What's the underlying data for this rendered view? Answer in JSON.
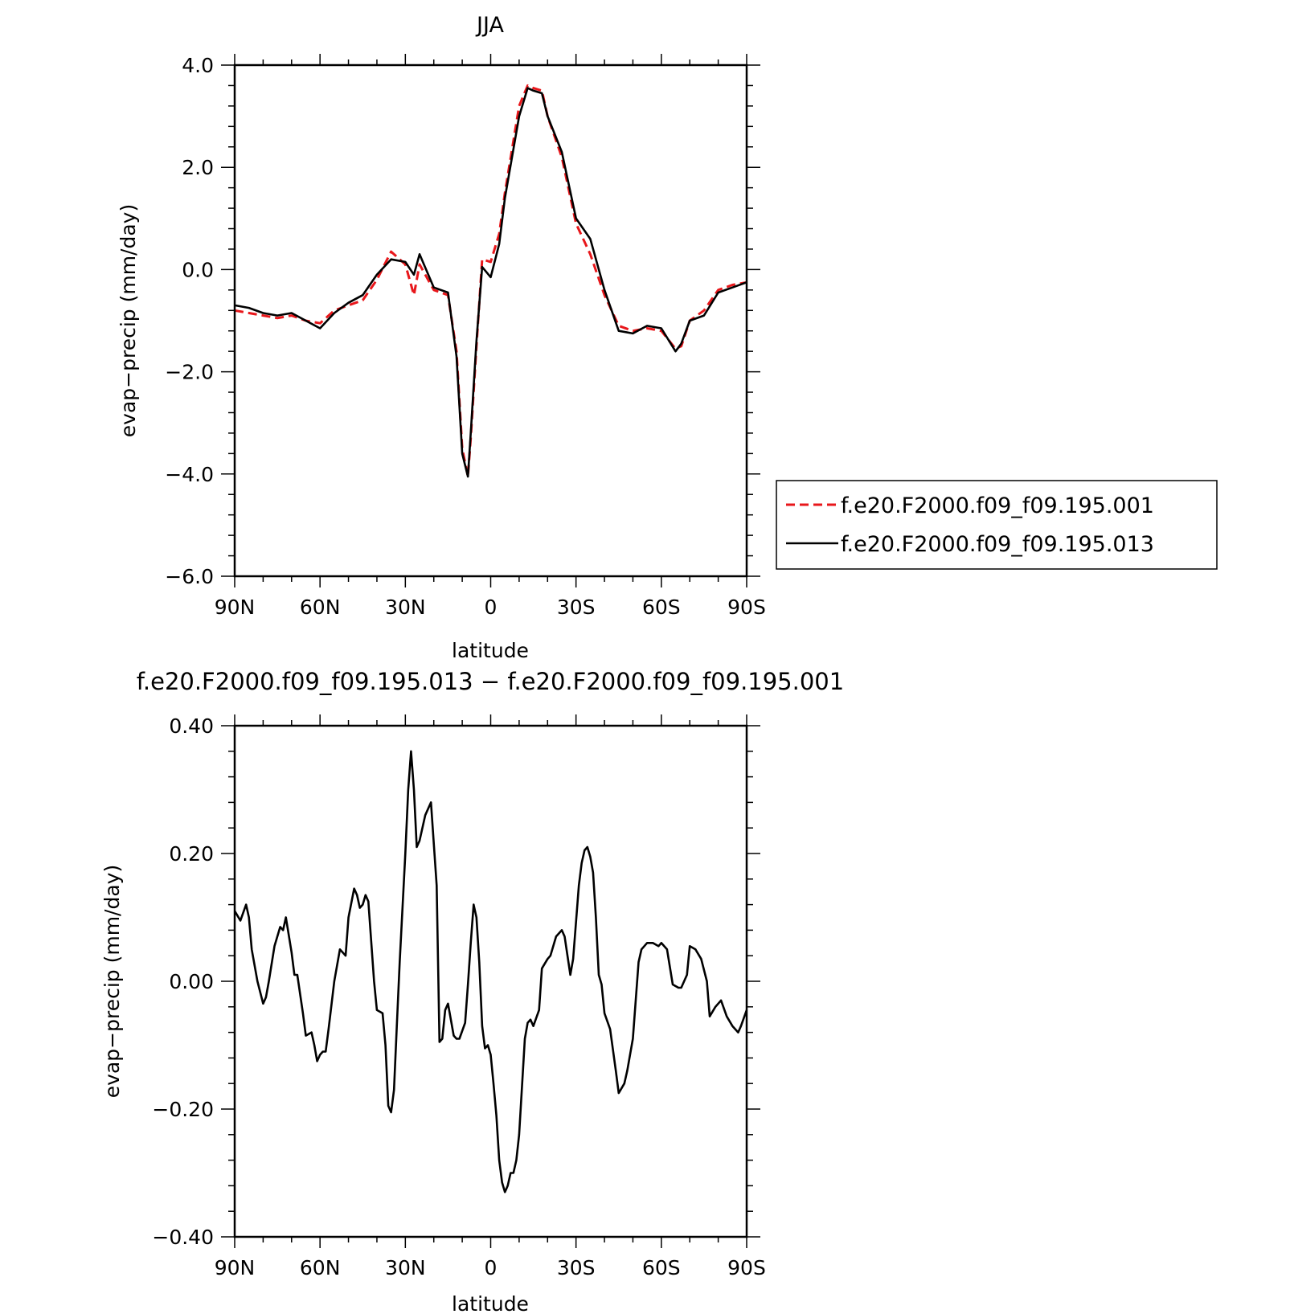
{
  "chart_data": [
    {
      "type": "line",
      "title": "JJA",
      "xlabel": "latitude",
      "ylabel": "evap−precip (mm/day)",
      "xlim": [
        90,
        -90
      ],
      "ylim": [
        -6.0,
        4.0
      ],
      "xticks": [
        {
          "value": 90,
          "label": "90N"
        },
        {
          "value": 60,
          "label": "60N"
        },
        {
          "value": 30,
          "label": "30N"
        },
        {
          "value": 0,
          "label": "0"
        },
        {
          "value": -30,
          "label": "30S"
        },
        {
          "value": -60,
          "label": "60S"
        },
        {
          "value": -90,
          "label": "90S"
        }
      ],
      "yticks": [
        {
          "value": 4.0,
          "label": "4.0"
        },
        {
          "value": 2.0,
          "label": "2.0"
        },
        {
          "value": 0.0,
          "label": "0.0"
        },
        {
          "value": -2.0,
          "label": "−2.0"
        },
        {
          "value": -4.0,
          "label": "−4.0"
        },
        {
          "value": -6.0,
          "label": "−6.0"
        }
      ],
      "legend_position": "right",
      "x": [
        90,
        85,
        80,
        75,
        70,
        65,
        60,
        55,
        50,
        45,
        40,
        35,
        30,
        27,
        25,
        20,
        15,
        12,
        10,
        8,
        7,
        5,
        3,
        0,
        -3,
        -5,
        -10,
        -13,
        -15,
        -18,
        -20,
        -25,
        -30,
        -35,
        -40,
        -45,
        -50,
        -55,
        -60,
        -65,
        -67,
        -70,
        -75,
        -80,
        -85,
        -90
      ],
      "series": [
        {
          "name": "f.e20.F2000.f09_f09.195.001",
          "color": "#e8171b",
          "dash": "dashed",
          "values": [
            -0.8,
            -0.85,
            -0.9,
            -0.95,
            -0.9,
            -1.0,
            -1.05,
            -0.8,
            -0.7,
            -0.6,
            -0.2,
            0.35,
            0.1,
            -0.5,
            0.1,
            -0.4,
            -0.5,
            -1.6,
            -3.5,
            -4.05,
            -3.3,
            -1.5,
            0.2,
            0.15,
            0.7,
            1.5,
            3.2,
            3.6,
            3.55,
            3.5,
            3.0,
            2.2,
            0.9,
            0.3,
            -0.5,
            -1.1,
            -1.2,
            -1.15,
            -1.2,
            -1.55,
            -1.5,
            -1.0,
            -0.8,
            -0.4,
            -0.3,
            -0.25
          ]
        },
        {
          "name": "f.e20.F2000.f09_f09.195.013",
          "color": "#000000",
          "dash": "solid",
          "values": [
            -0.7,
            -0.75,
            -0.85,
            -0.9,
            -0.85,
            -1.0,
            -1.15,
            -0.85,
            -0.65,
            -0.5,
            -0.1,
            0.2,
            0.15,
            -0.1,
            0.3,
            -0.35,
            -0.45,
            -1.7,
            -3.6,
            -4.05,
            -3.2,
            -1.4,
            0.05,
            -0.15,
            0.5,
            1.4,
            3.0,
            3.55,
            3.5,
            3.45,
            3.0,
            2.3,
            1.0,
            0.6,
            -0.4,
            -1.2,
            -1.25,
            -1.1,
            -1.15,
            -1.6,
            -1.45,
            -1.0,
            -0.9,
            -0.45,
            -0.35,
            -0.25
          ]
        }
      ]
    },
    {
      "type": "line",
      "title": "f.e20.F2000.f09_f09.195.013 − f.e20.F2000.f09_f09.195.001",
      "xlabel": "latitude",
      "ylabel": "evap−precip (mm/day)",
      "xlim": [
        90,
        -90
      ],
      "ylim": [
        -0.4,
        0.4
      ],
      "xticks": [
        {
          "value": 90,
          "label": "90N"
        },
        {
          "value": 60,
          "label": "60N"
        },
        {
          "value": 30,
          "label": "30N"
        },
        {
          "value": 0,
          "label": "0"
        },
        {
          "value": -30,
          "label": "30S"
        },
        {
          "value": -60,
          "label": "60S"
        },
        {
          "value": -90,
          "label": "90S"
        }
      ],
      "yticks": [
        {
          "value": 0.4,
          "label": "0.40"
        },
        {
          "value": 0.2,
          "label": "0.20"
        },
        {
          "value": 0.0,
          "label": "0.00"
        },
        {
          "value": -0.2,
          "label": "−0.20"
        },
        {
          "value": -0.4,
          "label": "−0.40"
        }
      ],
      "x": [
        90,
        88,
        86,
        85,
        84,
        82,
        80,
        79,
        78,
        76,
        74,
        73,
        72,
        70,
        69,
        68,
        66,
        65,
        63,
        62,
        61,
        60,
        59,
        58,
        57,
        55,
        53,
        52,
        51,
        50,
        48,
        47,
        46,
        45,
        44,
        43,
        41,
        40,
        38,
        37,
        36,
        35,
        34,
        33,
        32,
        30,
        29,
        28,
        27,
        26,
        25,
        23,
        21,
        19,
        18,
        17,
        16,
        15,
        13,
        12,
        11,
        9,
        8,
        7,
        6,
        5,
        4,
        3,
        2,
        1,
        0,
        -1,
        -2,
        -3,
        -4,
        -5,
        -6,
        -7,
        -8,
        -9,
        -10,
        -12,
        -13,
        -14,
        -15,
        -17,
        -18,
        -20,
        -21,
        -23,
        -24,
        -25,
        -26,
        -28,
        -29,
        -31,
        -32,
        -33,
        -34,
        -35,
        -36,
        -37,
        -38,
        -39,
        -40,
        -42,
        -44,
        -45,
        -47,
        -48,
        -50,
        -52,
        -53,
        -55,
        -57,
        -59,
        -60,
        -62,
        -64,
        -66,
        -67,
        -69,
        -70,
        -72,
        -74,
        -76,
        -77,
        -79,
        -81,
        -83,
        -85,
        -87,
        -88,
        -90
      ],
      "series": [
        {
          "name": "",
          "color": "#000000",
          "dash": "solid",
          "values": [
            0.11,
            0.095,
            0.12,
            0.1,
            0.05,
            0.0,
            -0.035,
            -0.025,
            0.0,
            0.055,
            0.085,
            0.08,
            0.1,
            0.045,
            0.01,
            0.01,
            -0.05,
            -0.085,
            -0.08,
            -0.1,
            -0.125,
            -0.115,
            -0.11,
            -0.11,
            -0.075,
            0.0,
            0.05,
            0.045,
            0.04,
            0.1,
            0.145,
            0.135,
            0.115,
            0.12,
            0.135,
            0.125,
            0.0,
            -0.045,
            -0.05,
            -0.1,
            -0.195,
            -0.205,
            -0.17,
            -0.07,
            0.03,
            0.2,
            0.3,
            0.36,
            0.3,
            0.21,
            0.22,
            0.26,
            0.28,
            0.15,
            -0.095,
            -0.09,
            -0.045,
            -0.035,
            -0.085,
            -0.09,
            -0.09,
            -0.065,
            -0.005,
            0.06,
            0.12,
            0.1,
            0.03,
            -0.07,
            -0.105,
            -0.1,
            -0.115,
            -0.16,
            -0.21,
            -0.28,
            -0.315,
            -0.33,
            -0.32,
            -0.3,
            -0.3,
            -0.28,
            -0.24,
            -0.09,
            -0.065,
            -0.06,
            -0.07,
            -0.045,
            0.02,
            0.035,
            0.04,
            0.07,
            0.075,
            0.08,
            0.07,
            0.01,
            0.035,
            0.15,
            0.185,
            0.205,
            0.21,
            0.195,
            0.17,
            0.1,
            0.01,
            -0.005,
            -0.05,
            -0.075,
            -0.14,
            -0.175,
            -0.16,
            -0.14,
            -0.09,
            0.03,
            0.05,
            0.06,
            0.06,
            0.055,
            0.06,
            0.05,
            -0.005,
            -0.01,
            -0.01,
            0.01,
            0.055,
            0.05,
            0.035,
            0.0,
            -0.055,
            -0.04,
            -0.03,
            -0.055,
            -0.07,
            -0.08,
            -0.07,
            -0.045
          ]
        }
      ]
    }
  ]
}
